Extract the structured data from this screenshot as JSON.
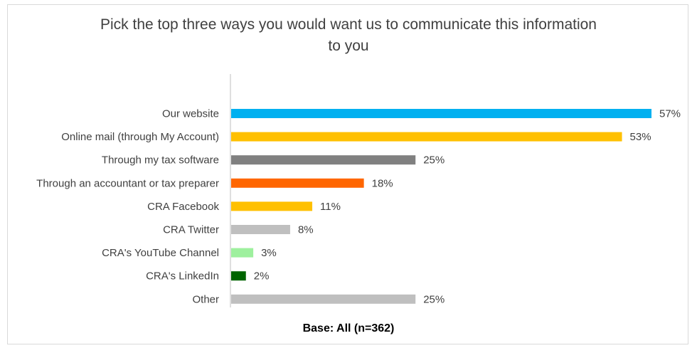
{
  "chart_data": {
    "type": "bar",
    "orientation": "horizontal",
    "title_lines": [
      "Pick the top three ways you would want us to communicate this information",
      "to you"
    ],
    "categories": [
      "Our website",
      "Online mail (through My Account)",
      "Through my tax software",
      "Through an accountant or tax preparer",
      "CRA Facebook",
      "CRA Twitter",
      "CRA's YouTube Channel",
      "CRA's LinkedIn",
      "Other"
    ],
    "values": [
      57,
      53,
      25,
      18,
      11,
      8,
      3,
      2,
      25
    ],
    "value_labels": [
      "57%",
      "53%",
      "25%",
      "18%",
      "11%",
      "8%",
      "3%",
      "2%",
      "25%"
    ],
    "colors": [
      "#00b0f0",
      "#ffc000",
      "#808080",
      "#ff6600",
      "#ffc000",
      "#bfbfbf",
      "#9ef09e",
      "#006400",
      "#bfbfbf"
    ],
    "unit": "%",
    "xlim": [
      0,
      57
    ],
    "grid": false,
    "legend": "none",
    "footer": "Base: All (n=362)"
  }
}
